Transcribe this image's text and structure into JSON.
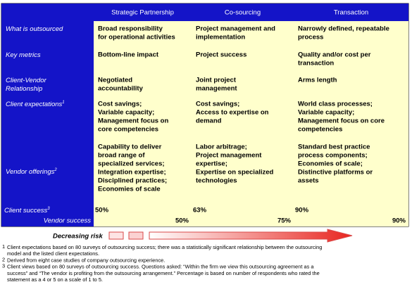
{
  "table": {
    "headers": [
      "Strategic Partnership",
      "Co-sourcing",
      "Transaction"
    ],
    "rows": [
      {
        "label": [
          "What is outsourced"
        ],
        "cells": [
          [
            "Broad responsibility",
            "for operational activities"
          ],
          [
            "Project management and",
            "implementation"
          ],
          [
            "Narrowly defined, repeatable",
            "process"
          ]
        ]
      },
      {
        "label": [
          "Key metrics"
        ],
        "cells": [
          [
            "Bottom-line impact"
          ],
          [
            "Project success"
          ],
          [
            "Quality and/or cost per",
            "transaction"
          ]
        ]
      },
      {
        "label": [
          "Client-Vendor",
          "Relationship"
        ],
        "cells": [
          [
            "Negotiated",
            "accountability"
          ],
          [
            "Joint project",
            "management"
          ],
          [
            "Arms length"
          ]
        ]
      },
      {
        "label": [
          "Client expectations"
        ],
        "note": "1",
        "cells": [
          [
            "Cost savings;",
            "Variable capacity;",
            "Management focus on",
            "core competencies"
          ],
          [
            "Cost savings;",
            "Access to expertise on",
            "demand"
          ],
          [
            "World class processes;",
            "Variable capacity;",
            "Management focus on core",
            "competencies"
          ]
        ]
      },
      {
        "label": [
          "Vendor offerings"
        ],
        "note": "2",
        "cells": [
          [
            "Capability to deliver",
            "broad range of",
            "specialized services;",
            "Integration expertise;",
            "Disciplined practices;",
            "Economies of scale"
          ],
          [
            "Labor arbitrage;",
            "Project management",
            "expertise;",
            "Expertise on specialized",
            "technologies"
          ],
          [
            "Standard best practice",
            "process components;",
            "Economies of scale;",
            "Distinctive platforms or",
            "assets"
          ]
        ]
      }
    ],
    "success": {
      "client_label": "Client success",
      "client_note": "3",
      "vendor_label": "Vendor success",
      "cells": [
        {
          "client": "50%",
          "vendor": "50%"
        },
        {
          "client": "63%",
          "vendor": "75%"
        },
        {
          "client": "90%",
          "vendor": "90%"
        }
      ]
    }
  },
  "risk": {
    "label": "Decreasing risk"
  },
  "footnotes": [
    {
      "mark": "1",
      "lines": [
        "Client expectations based on 80 surveys of outsourcing success; there was a statistically significant relationship between the outsourcing",
        "model and the listed client expectations."
      ]
    },
    {
      "mark": "2",
      "lines": [
        "Derived from eight case studies of company outsourcing experience."
      ]
    },
    {
      "mark": "3",
      "lines": [
        "Client views based on 80 surveys of outsourcing success. Questions asked: “Within the firm we view this outsourcing agreement as a",
        "success” and “The vendor is profiting from the outsourcing arrangement.” Percentage is based on number of respondents who rated the",
        "statement as a 4 or 5 on a scale of 1 to 5."
      ]
    }
  ]
}
